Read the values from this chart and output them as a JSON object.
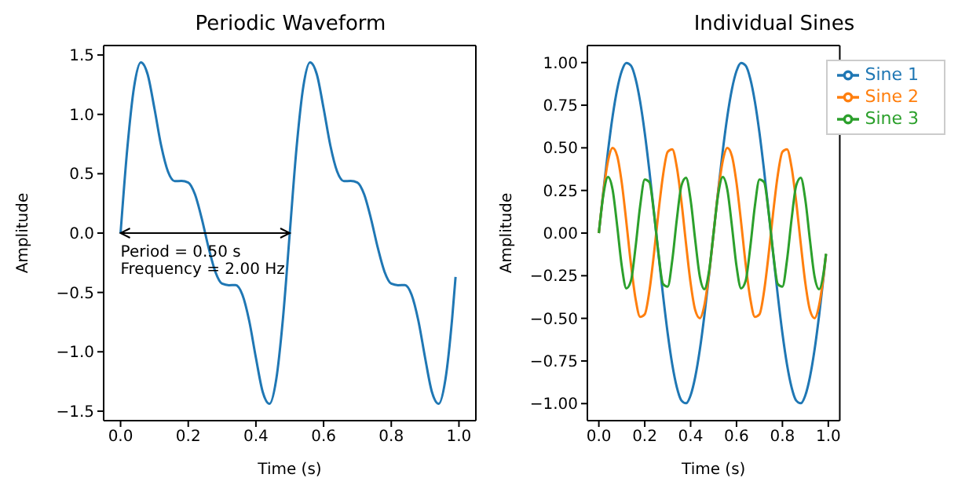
{
  "chart_data": [
    {
      "type": "line",
      "title": "Periodic Waveform",
      "xlabel": "Time (s)",
      "ylabel": "Amplitude",
      "x": [
        0,
        0.02,
        0.04,
        0.06,
        0.08,
        0.1,
        0.12,
        0.14,
        0.16,
        0.18,
        0.2,
        0.22,
        0.24,
        0.26,
        0.28,
        0.3,
        0.32,
        0.34,
        0.36,
        0.38,
        0.4,
        0.42,
        0.44,
        0.46,
        0.48,
        0.5,
        0.52,
        0.54,
        0.56,
        0.58,
        0.6,
        0.62,
        0.64,
        0.66,
        0.68,
        0.7,
        0.72,
        0.74,
        0.76,
        0.78,
        0.8,
        0.82,
        0.84,
        0.86,
        0.88,
        0.9,
        0.92,
        0.94,
        0.96,
        0.98,
        0.99
      ],
      "series": [
        {
          "color": "#1f77b4",
          "values": [
            0,
            0.716,
            1.233,
            1.438,
            1.337,
            1.051,
            0.737,
            0.519,
            0.438,
            0.439,
            0.426,
            0.325,
            0.122,
            -0.122,
            -0.325,
            -0.426,
            -0.439,
            -0.438,
            -0.519,
            -0.737,
            -1.051,
            -1.337,
            -1.438,
            -1.233,
            -0.716,
            0,
            0.716,
            1.233,
            1.438,
            1.337,
            1.051,
            0.737,
            0.519,
            0.438,
            0.439,
            0.426,
            0.325,
            0.122,
            -0.122,
            -0.325,
            -0.426,
            -0.439,
            -0.438,
            -0.519,
            -0.737,
            -1.051,
            -1.337,
            -1.438,
            -1.233,
            -0.716,
            -0.37
          ]
        }
      ],
      "xlim": [
        -0.05,
        1.05
      ],
      "ylim": [
        -1.58,
        1.58
      ],
      "xticks": [
        {
          "value": 0,
          "label": "0.0"
        },
        {
          "value": 0.2,
          "label": "0.2"
        },
        {
          "value": 0.4,
          "label": "0.4"
        },
        {
          "value": 0.6,
          "label": "0.6"
        },
        {
          "value": 0.8,
          "label": "0.8"
        },
        {
          "value": 1,
          "label": "1.0"
        }
      ],
      "yticks": [
        {
          "value": -1.5,
          "label": "−1.5"
        },
        {
          "value": -1,
          "label": "−1.0"
        },
        {
          "value": -0.5,
          "label": "−0.5"
        },
        {
          "value": 0,
          "label": "0.0"
        },
        {
          "value": 0.5,
          "label": "0.5"
        },
        {
          "value": 1,
          "label": "1.0"
        },
        {
          "value": 1.5,
          "label": "1.5"
        }
      ],
      "annotations": [
        {
          "text": "Period = 0.50 s\nFrequency = 2.00 Hz",
          "x": 0.5,
          "y": 0
        }
      ]
    },
    {
      "type": "line",
      "title": "Individual Sines",
      "xlabel": "Time (s)",
      "ylabel": "Amplitude",
      "legend": "top right",
      "x": [
        0,
        0.02,
        0.04,
        0.06,
        0.08,
        0.1,
        0.12,
        0.14,
        0.16,
        0.18,
        0.2,
        0.22,
        0.24,
        0.26,
        0.28,
        0.3,
        0.32,
        0.34,
        0.36,
        0.38,
        0.4,
        0.42,
        0.44,
        0.46,
        0.48,
        0.5,
        0.52,
        0.54,
        0.56,
        0.58,
        0.6,
        0.62,
        0.64,
        0.66,
        0.68,
        0.7,
        0.72,
        0.74,
        0.76,
        0.78,
        0.8,
        0.82,
        0.84,
        0.86,
        0.88,
        0.9,
        0.92,
        0.94,
        0.96,
        0.98,
        0.99
      ],
      "series": [
        {
          "name": "Sine 1",
          "color": "#1f77b4",
          "values": [
            0,
            0.249,
            0.482,
            0.685,
            0.844,
            0.951,
            0.998,
            0.982,
            0.905,
            0.771,
            0.588,
            0.368,
            0.125,
            -0.125,
            -0.368,
            -0.588,
            -0.771,
            -0.905,
            -0.982,
            -0.998,
            -0.951,
            -0.844,
            -0.685,
            -0.482,
            -0.249,
            0,
            0.249,
            0.482,
            0.685,
            0.844,
            0.951,
            0.998,
            0.982,
            0.905,
            0.771,
            0.588,
            0.368,
            0.125,
            -0.125,
            -0.368,
            -0.588,
            -0.771,
            -0.905,
            -0.982,
            -0.998,
            -0.951,
            -0.844,
            -0.685,
            -0.482,
            -0.249,
            -0.125
          ]
        },
        {
          "name": "Sine 2",
          "color": "#ff7f0e",
          "values": [
            0,
            0.241,
            0.422,
            0.499,
            0.452,
            0.294,
            0.063,
            -0.184,
            -0.385,
            -0.491,
            -0.476,
            -0.342,
            -0.124,
            0.124,
            0.342,
            0.476,
            0.491,
            0.385,
            0.184,
            -0.063,
            -0.294,
            -0.452,
            -0.499,
            -0.422,
            -0.241,
            0,
            0.241,
            0.422,
            0.499,
            0.452,
            0.294,
            0.063,
            -0.184,
            -0.385,
            -0.491,
            -0.476,
            -0.342,
            -0.124,
            0.124,
            0.342,
            0.476,
            0.491,
            0.385,
            0.184,
            -0.063,
            -0.294,
            -0.452,
            -0.499,
            -0.422,
            -0.241,
            -0.124
          ]
        },
        {
          "name": "Sine 3",
          "color": "#2ca02c",
          "values": [
            0,
            0.226,
            0.329,
            0.254,
            0.041,
            -0.194,
            -0.324,
            -0.279,
            -0.082,
            0.159,
            0.314,
            0.299,
            0.121,
            -0.121,
            -0.299,
            -0.314,
            -0.159,
            0.082,
            0.279,
            0.324,
            0.194,
            -0.041,
            -0.254,
            -0.329,
            -0.226,
            0,
            0.226,
            0.329,
            0.254,
            0.041,
            -0.194,
            -0.324,
            -0.279,
            -0.082,
            0.159,
            0.314,
            0.299,
            0.121,
            -0.121,
            -0.299,
            -0.314,
            -0.159,
            0.082,
            0.279,
            0.324,
            0.194,
            -0.041,
            -0.254,
            -0.329,
            -0.226,
            -0.121
          ]
        }
      ],
      "xlim": [
        -0.05,
        1.05
      ],
      "ylim": [
        -1.1,
        1.1
      ],
      "xticks": [
        {
          "value": 0,
          "label": "0.0"
        },
        {
          "value": 0.2,
          "label": "0.2"
        },
        {
          "value": 0.4,
          "label": "0.4"
        },
        {
          "value": 0.6,
          "label": "0.6"
        },
        {
          "value": 0.8,
          "label": "0.8"
        },
        {
          "value": 1,
          "label": "1.0"
        }
      ],
      "yticks": [
        {
          "value": -1,
          "label": "−1.00"
        },
        {
          "value": -0.75,
          "label": "−0.75"
        },
        {
          "value": -0.5,
          "label": "−0.50"
        },
        {
          "value": -0.25,
          "label": "−0.25"
        },
        {
          "value": 0,
          "label": "0.00"
        },
        {
          "value": 0.25,
          "label": "0.25"
        },
        {
          "value": 0.5,
          "label": "0.50"
        },
        {
          "value": 0.75,
          "label": "0.75"
        },
        {
          "value": 1,
          "label": "1.00"
        }
      ]
    }
  ]
}
